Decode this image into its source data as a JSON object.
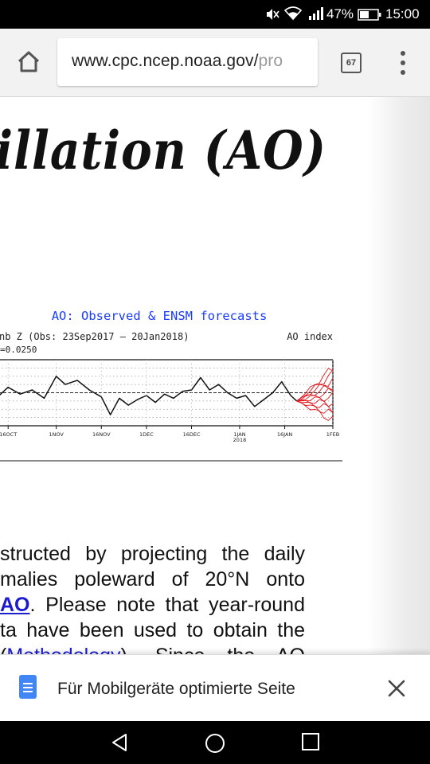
{
  "status_bar": {
    "battery_percent": "47%",
    "clock": "15:00",
    "icons": [
      "mute-icon",
      "wifi-icon",
      "signal-icon",
      "battery-icon"
    ]
  },
  "toolbar": {
    "url_main": "www.cpc.ncep.noaa.gov/",
    "url_faded": "pro",
    "tab_count": "67",
    "icons": [
      "home-icon",
      "tabs-icon",
      "overflow-menu-icon"
    ]
  },
  "page": {
    "title": "illation (AO)",
    "paragraph": {
      "line1": "structed by projecting the daily",
      "line2": "malies poleward of 20°N onto",
      "line3_link": "AO",
      "line3_rest": ". Please note that year-round",
      "line4": "ta have been used to obtain the",
      "line5_open": "(",
      "line5_link": "Methodology",
      "line5_rest": ").  Since the AO"
    }
  },
  "chart_data": {
    "type": "line",
    "title": "AO: Observed & ENSM forecasts",
    "subtitle_left": "nb Z (Obs: 23Sep2017 – 20Jan2018)",
    "subtitle_right": "AO index",
    "scale_note": "=0.0250",
    "x_tick_labels": [
      "16OCT",
      "1NOV",
      "16NOV",
      "1DEC",
      "16DEC",
      "1JAN",
      "16JAN",
      "1FEB"
    ],
    "x_year_label": "2018",
    "colors": {
      "observed": "#111111",
      "forecast": "#e0141c",
      "title": "#1a3cff"
    },
    "series": [
      {
        "type": "observed",
        "x": [
          "2017-10-05",
          "2017-10-09",
          "2017-10-13",
          "2017-10-16",
          "2017-10-20",
          "2017-10-24",
          "2017-10-28",
          "2017-11-01",
          "2017-11-04",
          "2017-11-08",
          "2017-11-12",
          "2017-11-16",
          "2017-11-19",
          "2017-11-22",
          "2017-11-25",
          "2017-11-28",
          "2017-12-01",
          "2017-12-04",
          "2017-12-07",
          "2017-12-10",
          "2017-12-13",
          "2017-12-16",
          "2017-12-19",
          "2017-12-22",
          "2017-12-25",
          "2017-12-28",
          "2017-12-31",
          "2018-01-03",
          "2018-01-06",
          "2018-01-09",
          "2018-01-12",
          "2018-01-15",
          "2018-01-18",
          "2018-01-20"
        ],
        "y": [
          0.0,
          0.3,
          -0.2,
          0.4,
          -0.1,
          0.2,
          -0.4,
          1.2,
          0.6,
          0.9,
          0.2,
          -0.3,
          -1.6,
          -0.4,
          -0.9,
          -0.5,
          -0.2,
          -0.7,
          -0.1,
          -0.4,
          0.1,
          0.2,
          1.1,
          0.2,
          0.6,
          0.0,
          -0.4,
          -0.2,
          -1.0,
          -0.5,
          0.0,
          0.8,
          -0.2,
          -0.6
        ]
      }
    ],
    "forecast_members": 10,
    "forecast_range": {
      "start": "2018-01-20",
      "end": "2018-02-01",
      "ymin": -2.0,
      "ymax": 1.8
    }
  },
  "banner": {
    "text": "Für Mobilgeräte optimierte Seite",
    "icons": [
      "document-icon",
      "close-icon"
    ]
  },
  "nav_bar": {
    "icons": [
      "back-icon",
      "home-circle-icon",
      "recents-icon"
    ]
  }
}
